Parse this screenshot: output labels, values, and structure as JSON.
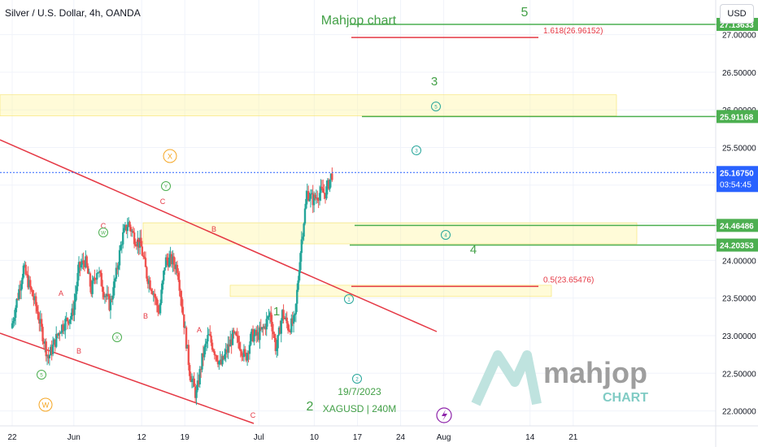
{
  "header": {
    "symbol_title": "Silver / U.S. Dollar, 4h, OANDA",
    "currency_button": "USD"
  },
  "watermark": {
    "brand_main": "mahjop",
    "brand_sub": "CHART"
  },
  "colors": {
    "green": "#4caf50",
    "red": "#e53945",
    "text_green": "#43a047",
    "cyan": "#26a69a",
    "orange": "#f5a623",
    "price_line": "#2962ff",
    "zone": "#fff59d",
    "candle_up": "#26a69a",
    "candle_down": "#ef5350",
    "vline": "#8e24aa"
  },
  "chart_data": {
    "type": "candlestick",
    "symbol": "XAGUSD",
    "timeframe": "4h",
    "y_axis": {
      "range": [
        21.9,
        27.15
      ],
      "tick_labels": [
        "27.00000",
        "26.50000",
        "26.00000",
        "25.50000",
        "25.00000",
        "24.50000",
        "24.00000",
        "23.50000",
        "23.00000",
        "22.50000",
        "22.00000"
      ],
      "tick_values": [
        27.0,
        26.5,
        26.0,
        25.5,
        25.0,
        24.5,
        24.0,
        23.5,
        23.0,
        22.5,
        22.0
      ]
    },
    "x_axis": {
      "range_days_from_may22": [
        0,
        65
      ],
      "tick_labels": [
        "22",
        "Jun",
        "12",
        "19",
        "Jul",
        "10",
        "17",
        "24",
        "Aug",
        "14",
        "21"
      ],
      "tick_days": [
        0,
        10,
        21,
        28,
        40,
        49,
        56,
        63,
        70,
        84,
        91
      ]
    },
    "current_price": {
      "label": "25.16750",
      "value": 25.1675,
      "countdown": "03:54:45"
    },
    "price_tags": [
      {
        "label": "27.13633",
        "value": 27.136
      },
      {
        "label": "25.91168",
        "value": 25.9117
      },
      {
        "label": "24.46486",
        "value": 24.4649
      },
      {
        "label": "24.20353",
        "value": 24.2035
      }
    ],
    "levels": [
      {
        "price": 27.136,
        "color": "green"
      },
      {
        "price": 25.9117,
        "color": "green"
      },
      {
        "price": 24.4649,
        "color": "green"
      },
      {
        "price": 24.2035,
        "color": "green"
      },
      {
        "price": 26.96152,
        "color": "red",
        "label": "1.618(26.96152)"
      },
      {
        "price": 23.65476,
        "color": "red",
        "label": "0.5(23.65476)"
      }
    ],
    "zones": [
      {
        "price_top": 26.2,
        "price_bottom": 25.92
      },
      {
        "price_top": 24.5,
        "price_bottom": 24.22
      },
      {
        "price_top": 23.67,
        "price_bottom": 23.52
      }
    ],
    "annotations": {
      "title": "Mahjop chart",
      "date_label": "19/7/2023",
      "symbol_label": "XAGUSD | 240M",
      "wave_labels_green": [
        "5",
        "3",
        "4",
        "1",
        "2"
      ],
      "wave_labels_red": [
        "C",
        "A",
        "B",
        "A",
        "B",
        "A",
        "B",
        "C",
        "C"
      ],
      "circled_green": [
        "W",
        "X",
        "Y",
        "5"
      ],
      "circled_cyan": [
        "1",
        "2",
        "3",
        "4",
        "5"
      ],
      "circled_orange": [
        "X",
        "W"
      ]
    },
    "ohlc_path": [
      [
        0,
        23.1
      ],
      [
        2,
        23.9
      ],
      [
        4,
        23.4
      ],
      [
        6,
        22.7
      ],
      [
        8,
        23.1
      ],
      [
        10,
        23.3
      ],
      [
        11,
        23.9
      ],
      [
        12,
        24.0
      ],
      [
        13,
        23.6
      ],
      [
        14,
        23.9
      ],
      [
        15,
        23.6
      ],
      [
        16,
        23.4
      ],
      [
        17,
        23.8
      ],
      [
        18,
        24.3
      ],
      [
        19,
        24.5
      ],
      [
        20,
        24.3
      ],
      [
        21,
        24.2
      ],
      [
        22,
        23.8
      ],
      [
        23,
        23.6
      ],
      [
        24,
        23.3
      ],
      [
        25,
        24.0
      ],
      [
        26,
        24.0
      ],
      [
        27,
        23.9
      ],
      [
        28,
        23.2
      ],
      [
        29,
        22.5
      ],
      [
        30,
        22.2
      ],
      [
        31,
        22.7
      ],
      [
        32,
        23.0
      ],
      [
        33,
        22.8
      ],
      [
        34,
        22.6
      ],
      [
        35,
        22.8
      ],
      [
        36,
        23.0
      ],
      [
        37,
        22.9
      ],
      [
        38,
        22.7
      ],
      [
        39,
        23.0
      ],
      [
        40,
        23.0
      ],
      [
        41,
        23.1
      ],
      [
        42,
        23.3
      ],
      [
        43,
        22.8
      ],
      [
        44,
        23.3
      ],
      [
        45,
        23.1
      ],
      [
        46,
        23.2
      ],
      [
        47,
        24.2
      ],
      [
        48,
        24.9
      ],
      [
        49,
        24.8
      ],
      [
        50,
        24.9
      ],
      [
        51,
        24.9
      ],
      [
        52,
        25.15
      ]
    ]
  }
}
